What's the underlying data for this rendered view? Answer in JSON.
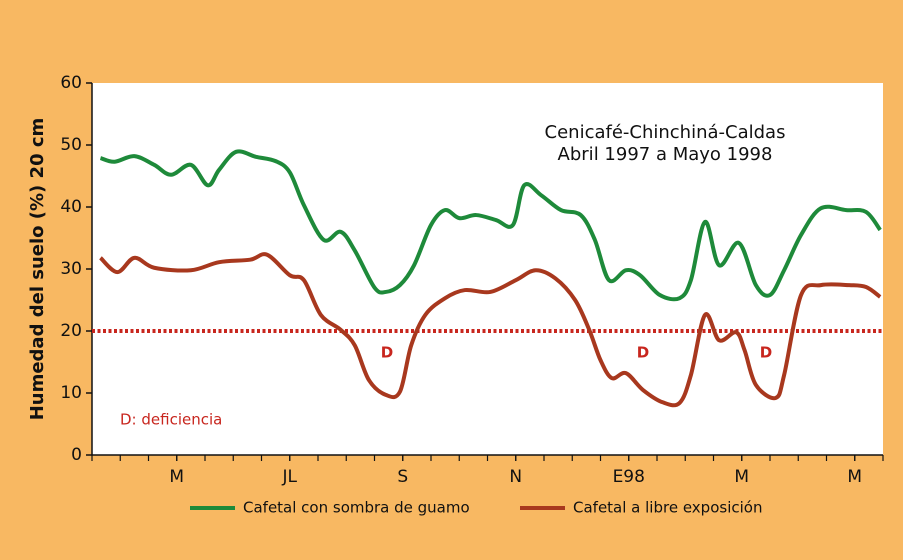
{
  "chart_data": {
    "type": "line",
    "title": "Cenicafé-Chinchiná-Caldas",
    "subtitle": "Abril 1997 a Mayo 1998",
    "ylabel": "Humedad del suelo (%) 20 cm",
    "xlim": [
      0,
      28
    ],
    "xticks": [
      {
        "value": 3,
        "label": "M"
      },
      {
        "value": 7,
        "label": "JL"
      },
      {
        "value": 11,
        "label": "S"
      },
      {
        "value": 15,
        "label": "N"
      },
      {
        "value": 19,
        "label": "E98"
      },
      {
        "value": 23,
        "label": "M"
      },
      {
        "value": 27,
        "label": "M"
      }
    ],
    "ylim": [
      0,
      60
    ],
    "yticks": [
      0,
      10,
      20,
      30,
      40,
      50,
      60
    ],
    "threshold": {
      "value": 20,
      "color": "#c8261e"
    },
    "annotations": [
      "D",
      "D",
      "D",
      "D:  deficiencia"
    ],
    "legend": "bottom",
    "series": [
      {
        "name": "Cafetal con sombra de guamo",
        "color": "#1e8a3a",
        "x": [
          0.3,
          0.8,
          1.5,
          2.2,
          2.8,
          3.5,
          4.1,
          4.5,
          5.1,
          5.8,
          6.5,
          7.0,
          7.5,
          8.2,
          8.8,
          9.3,
          10.0,
          10.4,
          10.9,
          11.4,
          12.0,
          12.5,
          13.0,
          13.6,
          14.3,
          14.9,
          15.3,
          15.9,
          16.6,
          17.3,
          17.8,
          18.3,
          18.9,
          19.4,
          20.1,
          20.8,
          21.2,
          21.7,
          22.2,
          22.9,
          23.5,
          24.0,
          24.5,
          25.1,
          25.8,
          26.7,
          27.4,
          27.9
        ],
        "values": [
          47.9,
          47.3,
          48.2,
          46.8,
          45.2,
          46.8,
          43.5,
          46,
          48.9,
          48.1,
          47.4,
          45.6,
          40.3,
          34.7,
          36,
          33,
          27,
          26.3,
          27.4,
          30.6,
          37.1,
          39.5,
          38.2,
          38.7,
          37.9,
          37.1,
          43.5,
          41.9,
          39.5,
          38.7,
          34.7,
          28.2,
          29.8,
          29,
          25.8,
          25.3,
          28.2,
          37.6,
          30.6,
          34.2,
          27.4,
          25.8,
          29.8,
          35.5,
          39.8,
          39.5,
          39.2,
          36.3
        ]
      },
      {
        "name": "Cafetal a libre exposición",
        "color": "#a8381e",
        "x": [
          0.3,
          0.9,
          1.5,
          2.2,
          3.5,
          4.5,
          5.6,
          6.2,
          7.0,
          7.5,
          8.1,
          8.8,
          9.3,
          9.8,
          10.4,
          10.9,
          11.3,
          11.8,
          12.5,
          13.2,
          14.1,
          15.0,
          15.7,
          16.4,
          17.1,
          17.6,
          18.0,
          18.4,
          18.9,
          19.5,
          20.2,
          20.8,
          21.2,
          21.7,
          22.2,
          22.8,
          23.1,
          23.5,
          24.2,
          24.5,
          25.1,
          25.8,
          26.8,
          27.4,
          27.9
        ],
        "values": [
          31.8,
          29.5,
          31.8,
          30.2,
          29.8,
          31.1,
          31.5,
          32.3,
          29,
          28.2,
          22.6,
          20.2,
          17.7,
          12.1,
          9.7,
          10.2,
          17.7,
          22.6,
          25.3,
          26.6,
          26.3,
          28.2,
          29.8,
          28.5,
          25,
          20.2,
          15.3,
          12.4,
          13.2,
          10.5,
          8.5,
          8.4,
          12.9,
          22.6,
          18.5,
          19.8,
          16.9,
          11.3,
          9.2,
          12.9,
          25.8,
          27.4,
          27.4,
          27.1,
          25.5
        ]
      }
    ]
  }
}
